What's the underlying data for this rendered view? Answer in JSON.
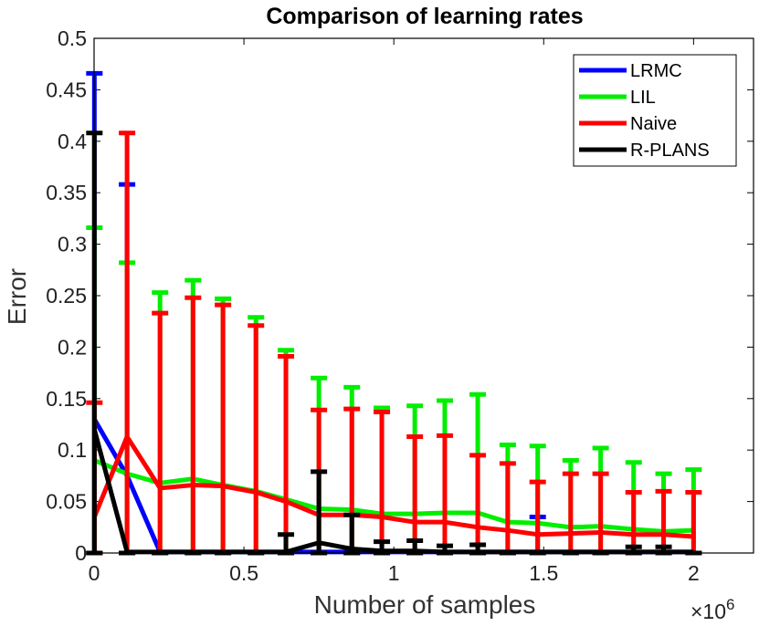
{
  "chart_data": {
    "type": "line",
    "title": "Comparison of learning rates",
    "xlabel": "Number of samples",
    "ylabel": "Error",
    "x_exponent_label": "×10",
    "x_exponent_power": "6",
    "xlim": [
      0,
      2.2
    ],
    "ylim": [
      0,
      0.5
    ],
    "x_ticks": [
      0,
      0.5,
      1,
      1.5,
      2
    ],
    "x_tick_labels": [
      "0",
      "0.5",
      "1",
      "1.5",
      "2"
    ],
    "y_ticks": [
      0,
      0.05,
      0.1,
      0.15,
      0.2,
      0.25,
      0.3,
      0.35,
      0.4,
      0.45,
      0.5
    ],
    "y_tick_labels": [
      "0",
      "0.05",
      "0.1",
      "0.15",
      "0.2",
      "0.25",
      "0.3",
      "0.35",
      "0.4",
      "0.45",
      "0.5"
    ],
    "legend_position": "top-right",
    "x": [
      0.001,
      0.11,
      0.22,
      0.33,
      0.43,
      0.54,
      0.64,
      0.75,
      0.86,
      0.96,
      1.07,
      1.17,
      1.28,
      1.38,
      1.48,
      1.59,
      1.69,
      1.8,
      1.9,
      2.0
    ],
    "series": [
      {
        "name": "LRMC",
        "color": "#0000ff",
        "values": [
          0.13,
          0.075,
          0.001,
          0.001,
          0.001,
          0.001,
          0.001,
          0.001,
          0.001,
          0.001,
          0.001,
          0.001,
          0.001,
          0.001,
          0.001,
          0.001,
          0.001,
          0.001,
          0.001,
          0.001
        ],
        "upper": [
          0.466,
          0.358,
          null,
          null,
          null,
          null,
          null,
          null,
          null,
          null,
          null,
          null,
          null,
          null,
          0.035,
          null,
          null,
          null,
          null,
          null
        ],
        "lower": [
          0,
          null,
          null,
          null,
          null,
          null,
          null,
          null,
          null,
          null,
          null,
          null,
          null,
          null,
          null,
          null,
          null,
          null,
          null,
          null
        ]
      },
      {
        "name": "LIL",
        "color": "#00ee00",
        "values": [
          0.09,
          0.077,
          0.068,
          0.072,
          0.066,
          0.06,
          0.052,
          0.043,
          0.042,
          0.038,
          0.038,
          0.039,
          0.039,
          0.03,
          0.029,
          0.025,
          0.026,
          0.023,
          0.021,
          0.022
        ],
        "upper": [
          0.316,
          0.282,
          0.253,
          0.265,
          0.247,
          0.229,
          0.197,
          0.17,
          0.161,
          0.141,
          0.143,
          0.148,
          0.154,
          0.105,
          0.104,
          0.09,
          0.102,
          0.088,
          0.077,
          0.081
        ],
        "lower": [
          0,
          0,
          0,
          0,
          0,
          0,
          0,
          0,
          0,
          0,
          0,
          0,
          0,
          0,
          0,
          0,
          0,
          0,
          0,
          0
        ]
      },
      {
        "name": "Naive",
        "color": "#ff0000",
        "values": [
          0.035,
          0.113,
          0.063,
          0.066,
          0.065,
          0.059,
          0.05,
          0.037,
          0.037,
          0.035,
          0.03,
          0.03,
          0.025,
          0.022,
          0.018,
          0.019,
          0.02,
          0.018,
          0.018,
          0.016
        ],
        "upper": [
          0.146,
          0.408,
          0.233,
          0.248,
          0.241,
          0.221,
          0.191,
          0.139,
          0.14,
          0.137,
          0.113,
          0.114,
          0.095,
          0.087,
          0.069,
          0.077,
          0.077,
          0.059,
          0.06,
          0.059
        ],
        "lower": [
          0,
          0,
          0,
          0,
          0,
          0,
          0,
          0,
          0,
          0,
          0,
          0,
          0,
          0,
          0,
          0,
          0,
          0,
          0,
          0
        ]
      },
      {
        "name": "R-PLANS",
        "color": "#000000",
        "values": [
          0.12,
          0.001,
          0.001,
          0.001,
          0.001,
          0.001,
          0.001,
          0.01,
          0.004,
          0.002,
          0.002,
          0.001,
          0.001,
          0.001,
          0.001,
          0.001,
          0.001,
          0.001,
          0.001,
          0.001
        ],
        "upper": [
          0.408,
          null,
          null,
          null,
          null,
          null,
          0.018,
          0.079,
          0.037,
          0.011,
          0.012,
          0.007,
          0.008,
          null,
          null,
          null,
          null,
          0.006,
          0.006,
          null
        ],
        "lower": [
          0,
          0,
          0,
          0,
          0,
          0,
          0,
          0,
          0,
          0,
          0,
          0,
          0,
          0,
          0,
          0,
          0,
          0,
          0,
          0
        ]
      }
    ]
  }
}
